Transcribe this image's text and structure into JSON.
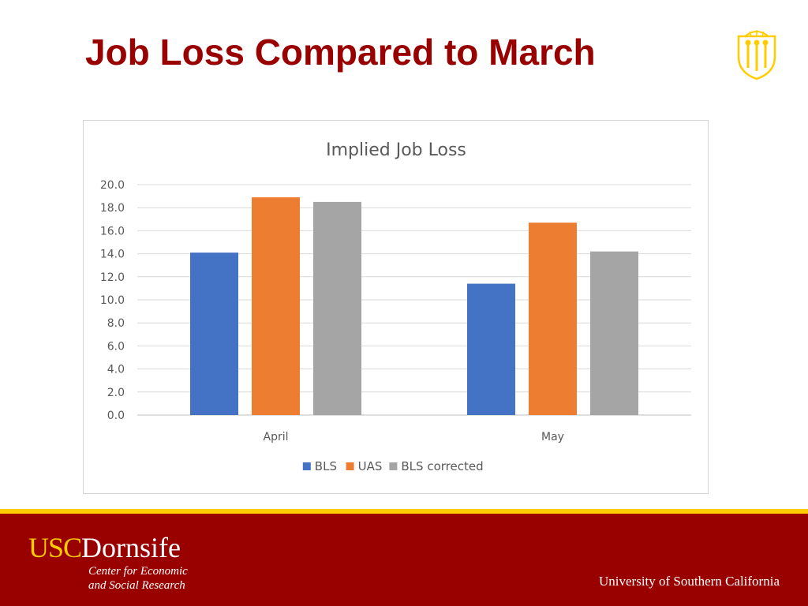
{
  "slide": {
    "title": "Job Loss Compared to March"
  },
  "footer": {
    "logo_usc": "USC",
    "logo_dornsife": "Dornsife",
    "subtitle_line1": "Center for Economic",
    "subtitle_line2": "and Social Research",
    "university": "University of Southern California"
  },
  "colors": {
    "title": "#990000",
    "footer_background": "#990000",
    "footer_stripe": "#ffcc00",
    "logo_usc": "#ffcc00"
  },
  "chart_data": {
    "type": "bar",
    "title": "Implied Job Loss",
    "categories": [
      "April",
      "May"
    ],
    "series": [
      {
        "name": "BLS",
        "values": [
          14.1,
          11.4
        ],
        "color": "#4472C4"
      },
      {
        "name": "UAS",
        "values": [
          18.9,
          16.7
        ],
        "color": "#ED7D31"
      },
      {
        "name": "BLS corrected",
        "values": [
          18.5,
          14.2
        ],
        "color": "#A5A5A5"
      }
    ],
    "ylim": [
      0,
      20
    ],
    "yticks": [
      "0.0",
      "2.0",
      "4.0",
      "6.0",
      "8.0",
      "10.0",
      "12.0",
      "14.0",
      "16.0",
      "18.0",
      "20.0"
    ],
    "xlabel": "",
    "ylabel": "",
    "grid": true,
    "legend_position": "bottom"
  }
}
